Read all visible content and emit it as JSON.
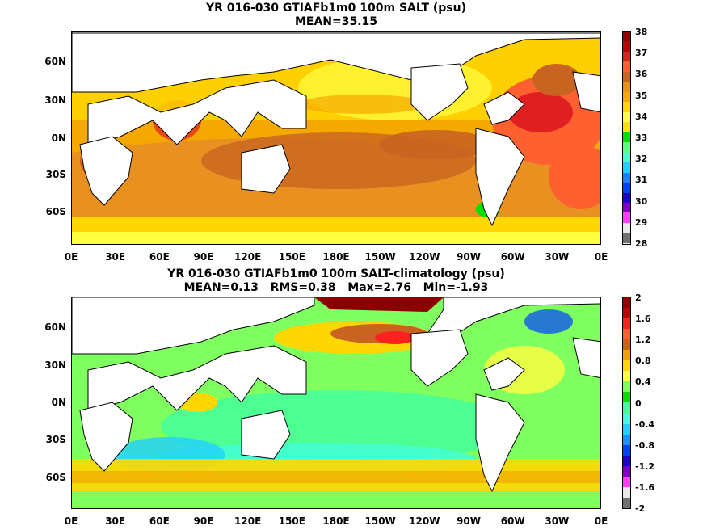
{
  "top": {
    "title": "YR 016-030 GTIAFb1m0 100m SALT (psu)",
    "subtitle": "MEAN=35.15",
    "y_ticks": [
      "60N",
      "30N",
      "0N",
      "30S",
      "60S"
    ],
    "x_ticks": [
      "0E",
      "30E",
      "60E",
      "90E",
      "120E",
      "150E",
      "180E",
      "150W",
      "120W",
      "90W",
      "60W",
      "30W",
      "0E"
    ],
    "colorbar_labels": [
      "38",
      "37",
      "36",
      "35",
      "34",
      "33",
      "32",
      "31",
      "30",
      "29",
      "28"
    ],
    "colorbar_colors": [
      "#8b0000",
      "#c00000",
      "#e02020",
      "#ff6030",
      "#c86420",
      "#e89020",
      "#f5a800",
      "#ffd700",
      "#ffff40",
      "#ffe000",
      "#00e000",
      "#60ff80",
      "#40ffd0",
      "#20d0ff",
      "#2080ff",
      "#0040ff",
      "#2000d0",
      "#8000c0",
      "#ff40ff",
      "#e8e8e8",
      "#707070"
    ]
  },
  "bottom": {
    "title": "YR 016-030 GTIAFb1m0 100m SALT-climatology (psu)",
    "stats": "MEAN=0.13   RMS=0.38   Max=2.76   Min=-1.93",
    "y_ticks": [
      "60N",
      "30N",
      "0N",
      "30S",
      "60S"
    ],
    "x_ticks": [
      "0E",
      "30E",
      "60E",
      "90E",
      "120E",
      "150E",
      "180E",
      "150W",
      "120W",
      "90W",
      "60W",
      "30W",
      "0E"
    ],
    "colorbar_labels": [
      "2",
      "1.6",
      "1.2",
      "0.8",
      "0.4",
      "0",
      "-0.4",
      "-0.8",
      "-1.2",
      "-1.6",
      "-2"
    ],
    "colorbar_colors": [
      "#8b0000",
      "#c00000",
      "#ff2020",
      "#ff6030",
      "#c86420",
      "#f0a000",
      "#ffd700",
      "#ffff40",
      "#80ff60",
      "#00e000",
      "#40ffa0",
      "#40ffe0",
      "#20d0ff",
      "#2090ff",
      "#0040ff",
      "#2000d0",
      "#8000c0",
      "#ff40ff",
      "#e8e8e8",
      "#707070"
    ]
  }
}
